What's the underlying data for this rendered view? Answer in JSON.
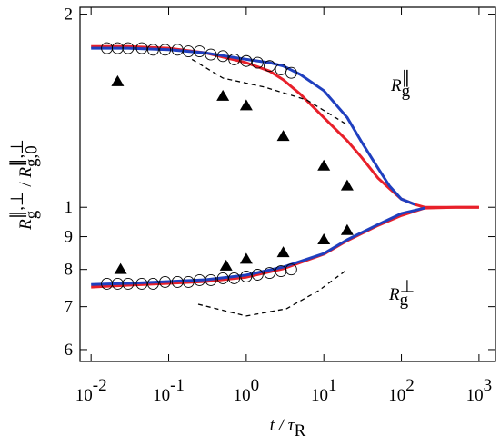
{
  "chart_data": {
    "type": "line",
    "log_x": true,
    "log_y": true,
    "xlim": [
      0.0072,
      1630
    ],
    "ylim": [
      0.575,
      2.05
    ],
    "xticks": [
      {
        "value": 0.01,
        "label": "10",
        "exponent": "-2"
      },
      {
        "value": 0.1,
        "label": "10",
        "exponent": "-1"
      },
      {
        "value": 1,
        "label": "10",
        "exponent": "0"
      },
      {
        "value": 10,
        "label": "10",
        "exponent": "1"
      },
      {
        "value": 100,
        "label": "10",
        "exponent": "2"
      },
      {
        "value": 1000,
        "label": "10",
        "exponent": "3"
      }
    ],
    "yticks": [
      2,
      1,
      {
        "value": 0.9,
        "label": "9"
      },
      {
        "value": 0.8,
        "label": "8"
      },
      {
        "value": 0.7,
        "label": "7"
      },
      {
        "value": 0.6,
        "label": "6"
      }
    ],
    "x_label": [
      {
        "text": "t",
        "italic": true
      },
      {
        "text": " / τ",
        "italic": true
      },
      {
        "text": "R",
        "shift": "sub"
      }
    ],
    "y_label": [
      {
        "text": "R",
        "italic": true
      },
      {
        "text": "g",
        "shift": "sub"
      },
      {
        "text": "∥,⊥",
        "shift": "sup",
        "stack": true
      },
      {
        "text": " / "
      },
      {
        "text": "R",
        "italic": true
      },
      {
        "text": "g,0",
        "shift": "sub"
      },
      {
        "text": "∥,⊥",
        "shift": "sup",
        "stack": true
      }
    ],
    "annotations": [
      [
        {
          "text": "R",
          "italic": true
        },
        {
          "text": "g",
          "shift": "sub"
        },
        {
          "text": "∥",
          "shift": "sup",
          "stack": true
        }
      ],
      [
        {
          "text": "R",
          "italic": true
        },
        {
          "text": "g",
          "shift": "sub"
        },
        {
          "text": "⊥",
          "shift": "sup",
          "stack": true
        }
      ]
    ],
    "series": [
      {
        "style": "line",
        "color": "#e8202a",
        "x": [
          0.01,
          0.03,
          0.1,
          0.3,
          1,
          2,
          3,
          5,
          10,
          20,
          30,
          50,
          70,
          100,
          150,
          200,
          500,
          1000
        ],
        "values": [
          1.78,
          1.78,
          1.77,
          1.74,
          1.68,
          1.63,
          1.58,
          1.5,
          1.38,
          1.27,
          1.2,
          1.11,
          1.07,
          1.03,
          1.01,
          1.0,
          1.0,
          1.0
        ]
      },
      {
        "style": "line",
        "color": "#1f3fbf",
        "x": [
          0.01,
          0.03,
          0.1,
          0.3,
          1,
          2,
          3,
          5,
          10,
          20,
          30,
          50,
          70,
          100,
          150
        ],
        "values": [
          1.77,
          1.77,
          1.76,
          1.74,
          1.7,
          1.68,
          1.66,
          1.61,
          1.52,
          1.38,
          1.27,
          1.15,
          1.08,
          1.03,
          1.01
        ]
      },
      {
        "style": "line",
        "color": "#e8202a",
        "x": [
          0.01,
          0.03,
          0.1,
          0.3,
          1,
          3,
          10,
          20,
          50,
          100,
          200,
          500,
          1000
        ],
        "values": [
          0.751,
          0.756,
          0.761,
          0.766,
          0.778,
          0.802,
          0.845,
          0.887,
          0.937,
          0.971,
          0.997,
          1.0,
          1.0
        ]
      },
      {
        "style": "line",
        "color": "#1f3fbf",
        "x": [
          0.01,
          0.03,
          0.1,
          0.3,
          1,
          3,
          10,
          20,
          50,
          100,
          200
        ],
        "values": [
          0.758,
          0.761,
          0.766,
          0.771,
          0.784,
          0.807,
          0.847,
          0.89,
          0.94,
          0.978,
          0.997
        ]
      },
      {
        "style": "dashed",
        "color": "#000000",
        "x": [
          0.2,
          0.5,
          1.7,
          6,
          19
        ],
        "values": [
          1.7,
          1.59,
          1.54,
          1.47,
          1.35
        ]
      },
      {
        "style": "dashed",
        "color": "#000000",
        "x": [
          0.24,
          1,
          3.3,
          8.5,
          19
        ],
        "values": [
          0.706,
          0.677,
          0.695,
          0.741,
          0.796
        ]
      },
      {
        "style": "circle",
        "color": "#000000",
        "x": [
          0.016,
          0.022,
          0.03,
          0.045,
          0.063,
          0.09,
          0.13,
          0.18,
          0.25,
          0.35,
          0.5,
          0.7,
          1,
          1.4,
          2,
          2.8,
          3.8
        ],
        "values": [
          1.77,
          1.77,
          1.77,
          1.77,
          1.76,
          1.76,
          1.76,
          1.75,
          1.75,
          1.73,
          1.72,
          1.7,
          1.69,
          1.68,
          1.66,
          1.64,
          1.62
        ]
      },
      {
        "style": "circle",
        "color": "#000000",
        "x": [
          0.016,
          0.022,
          0.03,
          0.045,
          0.063,
          0.09,
          0.13,
          0.18,
          0.25,
          0.35,
          0.5,
          0.7,
          1,
          1.4,
          2,
          2.8,
          3.8
        ],
        "values": [
          0.76,
          0.76,
          0.76,
          0.76,
          0.76,
          0.765,
          0.765,
          0.765,
          0.77,
          0.77,
          0.775,
          0.775,
          0.78,
          0.785,
          0.79,
          0.795,
          0.8
        ]
      },
      {
        "style": "triangle",
        "color": "#000000",
        "x": [
          0.022,
          0.5,
          1,
          3,
          10,
          20
        ],
        "values": [
          1.57,
          1.49,
          1.44,
          1.29,
          1.16,
          1.08
        ]
      },
      {
        "style": "triangle",
        "color": "#000000",
        "x": [
          0.024,
          0.55,
          1,
          3,
          10,
          20
        ],
        "values": [
          0.8,
          0.81,
          0.83,
          0.85,
          0.89,
          0.92
        ]
      }
    ]
  }
}
